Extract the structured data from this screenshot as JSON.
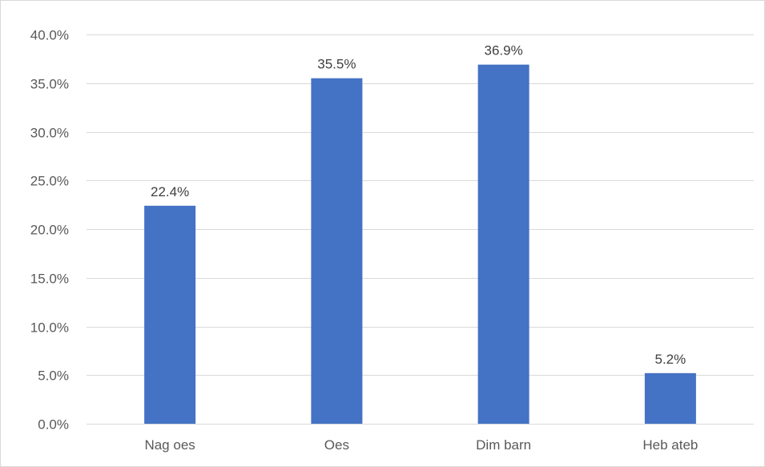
{
  "chart_data": {
    "type": "bar",
    "title": "",
    "xlabel": "",
    "ylabel": "",
    "categories": [
      "Nag oes",
      "Oes",
      "Dim barn",
      "Heb ateb"
    ],
    "values": [
      22.4,
      35.5,
      36.9,
      5.2
    ],
    "data_labels": [
      "22.4%",
      "35.5%",
      "36.9%",
      "5.2%"
    ],
    "ylim": [
      0,
      40
    ],
    "y_ticks": [
      0,
      5,
      10,
      15,
      20,
      25,
      30,
      35,
      40
    ],
    "y_tick_labels": [
      "0.0%",
      "5.0%",
      "10.0%",
      "15.0%",
      "20.0%",
      "25.0%",
      "30.0%",
      "35.0%",
      "40.0%"
    ],
    "grid": true,
    "legend": "none",
    "bar_color": "#4472c4",
    "gridline_color": "#d9d9d9"
  }
}
